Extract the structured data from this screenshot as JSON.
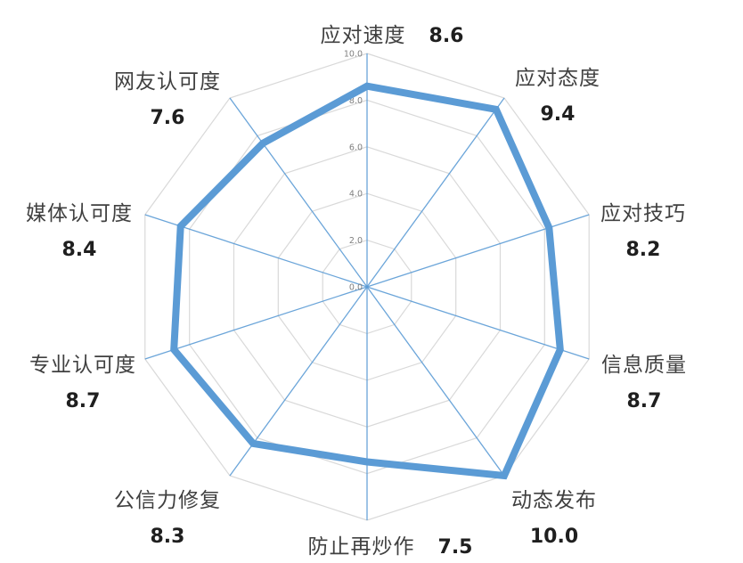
{
  "chart_data": {
    "type": "radar",
    "title": "",
    "categories": [
      "应对速度",
      "应对态度",
      "应对技巧",
      "信息质量",
      "动态发布",
      "防止再炒作",
      "公信力修复",
      "专业认可度",
      "媒体认可度",
      "网友认可度"
    ],
    "series": [
      {
        "name": "",
        "values": [
          8.6,
          9.4,
          8.2,
          8.7,
          10.0,
          7.5,
          8.3,
          8.7,
          8.4,
          7.6
        ]
      }
    ],
    "value_labels": [
      "8.6",
      "9.4",
      "8.2",
      "8.7",
      "10.0",
      "7.5",
      "8.3",
      "8.7",
      "8.4",
      "7.6"
    ],
    "radial_ticks": [
      "0.0",
      "2.0",
      "4.0",
      "6.0",
      "8.0",
      "10.0"
    ],
    "rlim": [
      0,
      10
    ],
    "grid": true,
    "legend": "none",
    "colors": {
      "series_line": "#5B9BD5",
      "spokes": "#5B9BD5",
      "rings": "#D9D9D9",
      "tick_text": "#7F7F7F",
      "category_text": "#404040",
      "value_text": "#1F1F1F"
    }
  }
}
